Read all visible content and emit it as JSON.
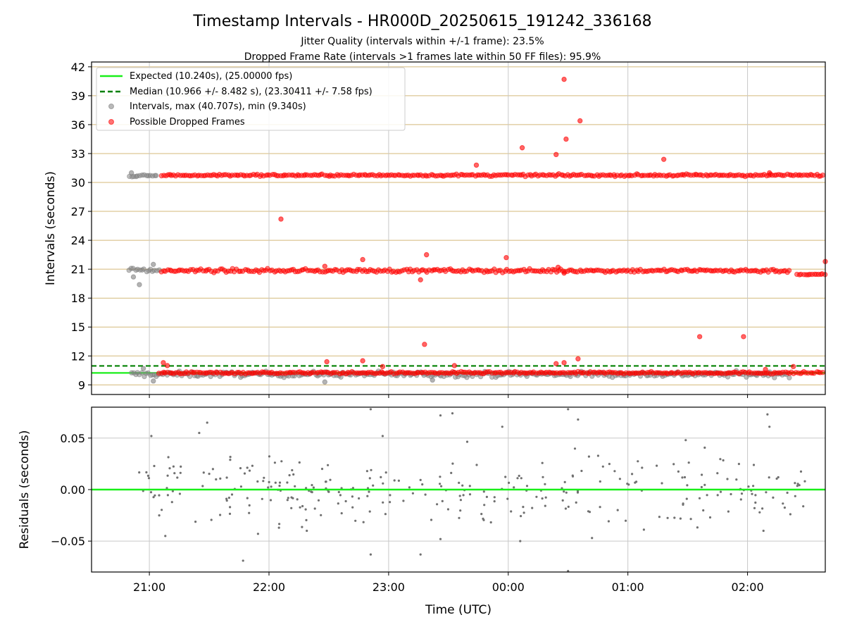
{
  "figure": {
    "title": "Timestamp Intervals - HR000D_20250615_191242_336168",
    "subtitle_1": "Jitter Quality (intervals within +/-1 frame): 23.5%",
    "subtitle_2": "Dropped Frame Rate (intervals >1 frames late within 50 FF files): 95.9%"
  },
  "colors": {
    "expected": "#19ef19",
    "median": "#008000",
    "intervals": "#808080",
    "dropped": "#ff0000",
    "gridline": "#d4b97a"
  },
  "chart_data": [
    {
      "type": "scatter",
      "panel": "top",
      "ylabel": "Intervals (seconds)",
      "ylim": [
        8,
        42.5
      ],
      "yticks": [
        9,
        12,
        15,
        18,
        21,
        24,
        27,
        30,
        33,
        36,
        39,
        42
      ],
      "ytick_labels": [
        "9",
        "12",
        "15",
        "18",
        "21",
        "24",
        "27",
        "30",
        "33",
        "36",
        "39",
        "42"
      ],
      "xlim": [
        "20:31",
        "02:39"
      ],
      "xticks": [
        "21:00",
        "22:00",
        "23:00",
        "00:00",
        "01:00",
        "02:00"
      ],
      "grid": "horizontal",
      "legend_position": "top-left",
      "legend": [
        {
          "label": "Expected (10.240s), (25.00000 fps)",
          "kind": "line"
        },
        {
          "label": "Median (10.966 +/- 8.482 s), (23.30411 +/- 7.58 fps)",
          "kind": "dashed"
        },
        {
          "label": "Intervals, max (40.707s), min (9.340s)",
          "kind": "marker-gray"
        },
        {
          "label": "Possible Dropped Frames",
          "kind": "marker-red"
        }
      ],
      "series": [
        {
          "name": "Expected (10.240s), (25.00000 fps)",
          "kind": "hline",
          "y": 10.24
        },
        {
          "name": "Median (10.966 +/- 8.482 s), (23.30411 +/- 7.58 fps)",
          "kind": "hline-dashed",
          "y": 10.966
        },
        {
          "name": "Intervals, max (40.707s), min (9.340s)",
          "kind": "scatter",
          "bands": [
            {
              "x_start": "20:51",
              "x_end": "02:21",
              "y": 10.1,
              "spread": 0.4
            },
            {
              "x_start": "20:50",
              "x_end": "21:05",
              "y": 20.9,
              "spread": 0.3
            },
            {
              "x_start": "20:50",
              "x_end": "21:04",
              "y": 30.7,
              "spread": 0.2
            }
          ],
          "points": [
            {
              "x": "20:52",
              "y": 20.2
            },
            {
              "x": "20:55",
              "y": 19.4
            },
            {
              "x": "21:02",
              "y": 21.5
            },
            {
              "x": "21:02",
              "y": 9.4
            },
            {
              "x": "22:28",
              "y": 9.3
            },
            {
              "x": "23:22",
              "y": 9.5
            },
            {
              "x": "20:51",
              "y": 31.0
            },
            {
              "x": "20:57",
              "y": 10.7
            }
          ]
        },
        {
          "name": "Possible Dropped Frames",
          "kind": "scatter",
          "bands": [
            {
              "x_start": "21:05",
              "x_end": "02:38",
              "y": 10.25,
              "spread": 0.15
            },
            {
              "x_start": "21:06",
              "x_end": "02:22",
              "y": 20.85,
              "spread": 0.25
            },
            {
              "x_start": "02:25",
              "x_end": "02:39",
              "y": 20.45,
              "spread": 0.1
            },
            {
              "x_start": "21:06",
              "x_end": "02:38",
              "y": 30.75,
              "spread": 0.15
            }
          ],
          "points": [
            {
              "x": "21:07",
              "y": 11.3
            },
            {
              "x": "21:09",
              "y": 11.0
            },
            {
              "x": "22:06",
              "y": 26.2
            },
            {
              "x": "22:29",
              "y": 11.4
            },
            {
              "x": "22:28",
              "y": 21.3
            },
            {
              "x": "22:47",
              "y": 11.5
            },
            {
              "x": "22:47",
              "y": 22.0
            },
            {
              "x": "22:57",
              "y": 10.9
            },
            {
              "x": "23:16",
              "y": 19.9
            },
            {
              "x": "23:18",
              "y": 13.2
            },
            {
              "x": "23:19",
              "y": 22.5
            },
            {
              "x": "23:33",
              "y": 11.0
            },
            {
              "x": "23:44",
              "y": 31.8
            },
            {
              "x": "23:59",
              "y": 22.2
            },
            {
              "x": "00:07",
              "y": 33.6
            },
            {
              "x": "00:24",
              "y": 11.2
            },
            {
              "x": "00:24",
              "y": 32.9
            },
            {
              "x": "00:25",
              "y": 21.2
            },
            {
              "x": "00:28",
              "y": 11.3
            },
            {
              "x": "00:28",
              "y": 20.6
            },
            {
              "x": "00:28",
              "y": 40.7
            },
            {
              "x": "00:29",
              "y": 34.5
            },
            {
              "x": "00:35",
              "y": 11.7
            },
            {
              "x": "00:36",
              "y": 36.4
            },
            {
              "x": "01:18",
              "y": 32.4
            },
            {
              "x": "01:36",
              "y": 14.0
            },
            {
              "x": "01:58",
              "y": 14.0
            },
            {
              "x": "02:09",
              "y": 10.6
            },
            {
              "x": "02:11",
              "y": 31.0
            },
            {
              "x": "02:23",
              "y": 10.9
            },
            {
              "x": "02:39",
              "y": 21.8
            }
          ]
        }
      ]
    },
    {
      "type": "scatter",
      "panel": "bottom",
      "xlabel": "Time (UTC)",
      "ylabel": "Residuals (seconds)",
      "ylim": [
        -0.08,
        0.08
      ],
      "yticks": [
        -0.05,
        0.0,
        0.05
      ],
      "ytick_labels": [
        "−0.05",
        "0.00",
        "0.05"
      ],
      "xlim": [
        "20:31",
        "02:39"
      ],
      "xticks": [
        "21:00",
        "22:00",
        "23:00",
        "00:00",
        "01:00",
        "02:00"
      ],
      "xtick_labels": [
        "21:00",
        "22:00",
        "23:00",
        "00:00",
        "01:00",
        "02:00"
      ],
      "grid": "both",
      "series": [
        {
          "kind": "hline",
          "y": 0.0
        },
        {
          "kind": "scatter",
          "x_range": [
            "20:51",
            "02:29"
          ],
          "count": 300,
          "spread": 0.03,
          "outliers": [
            {
              "x": "21:01",
              "y": 0.052
            },
            {
              "x": "21:08",
              "y": -0.045
            },
            {
              "x": "21:25",
              "y": 0.055
            },
            {
              "x": "21:29",
              "y": 0.065
            },
            {
              "x": "21:47",
              "y": -0.069
            },
            {
              "x": "22:05",
              "y": -0.037
            },
            {
              "x": "22:51",
              "y": 0.078
            },
            {
              "x": "22:51",
              "y": -0.063
            },
            {
              "x": "22:57",
              "y": 0.052
            },
            {
              "x": "23:16",
              "y": -0.063
            },
            {
              "x": "23:26",
              "y": -0.048
            },
            {
              "x": "23:26",
              "y": 0.072
            },
            {
              "x": "23:32",
              "y": 0.074
            },
            {
              "x": "23:57",
              "y": 0.061
            },
            {
              "x": "00:06",
              "y": -0.05
            },
            {
              "x": "00:30",
              "y": 0.078
            },
            {
              "x": "00:30",
              "y": -0.079
            },
            {
              "x": "00:35",
              "y": 0.068
            },
            {
              "x": "00:42",
              "y": -0.047
            },
            {
              "x": "02:10",
              "y": 0.073
            },
            {
              "x": "02:11",
              "y": 0.061
            },
            {
              "x": "02:08",
              "y": -0.04
            },
            {
              "x": "01:29",
              "y": 0.048
            }
          ]
        }
      ]
    }
  ]
}
